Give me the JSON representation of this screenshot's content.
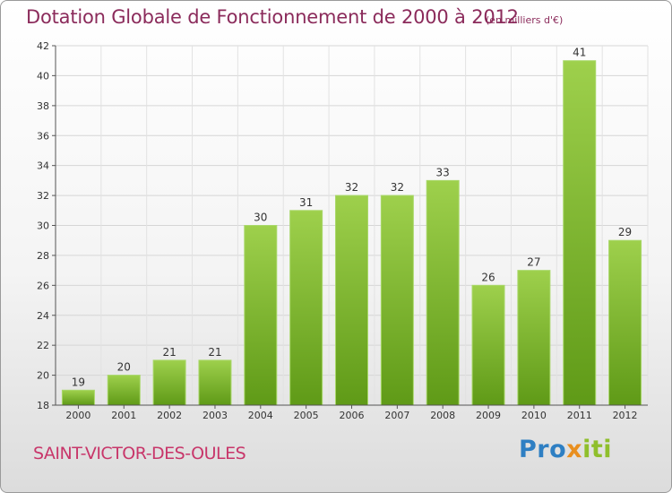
{
  "chart_data": {
    "type": "bar",
    "title": "Dotation Globale de Fonctionnement de 2000 à 2012",
    "unit_label": "(en milliers d'€)",
    "categories": [
      "2000",
      "2001",
      "2002",
      "2003",
      "2004",
      "2005",
      "2006",
      "2007",
      "2008",
      "2009",
      "2010",
      "2011",
      "2012"
    ],
    "values": [
      19,
      20,
      21,
      21,
      30,
      31,
      32,
      32,
      33,
      26,
      27,
      41,
      29
    ],
    "ylim": [
      18,
      42
    ],
    "yticks": [
      18,
      20,
      22,
      24,
      26,
      28,
      30,
      32,
      34,
      36,
      38,
      40,
      42
    ],
    "grid": true,
    "bar_color": "#7fbf2e",
    "bar_color_dark": "#5f9a17",
    "legend": "none"
  },
  "commune": "SAINT-VICTOR-DES-OULES",
  "logo": {
    "part1": "Pro",
    "part2": "x",
    "part3": "iti"
  }
}
